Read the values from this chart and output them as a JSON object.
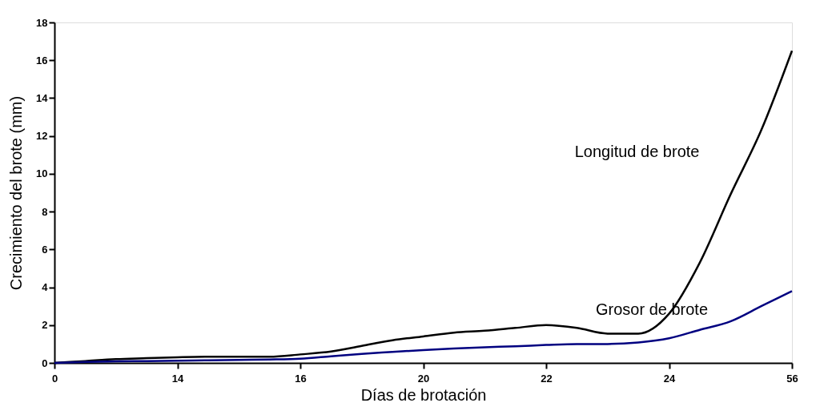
{
  "chart_data": {
    "type": "line",
    "xlabel": "Días de brotación",
    "ylabel": "Crecimiento del brote (mm)",
    "categories": [
      "0",
      null,
      null,
      null,
      "14",
      null,
      null,
      null,
      "16",
      null,
      null,
      null,
      "20",
      null,
      null,
      null,
      "22",
      null,
      null,
      null,
      "24",
      null,
      null,
      null,
      "56"
    ],
    "ylim": [
      0,
      18
    ],
    "yticks": [
      0,
      2,
      4,
      6,
      8,
      10,
      12,
      14,
      16,
      18
    ],
    "marker": "none",
    "line_style": "solid",
    "series": [
      {
        "name": "Longitud de brote",
        "color": "#000000",
        "values": [
          0,
          0.1,
          0.2,
          0.25,
          0.3,
          0.33,
          0.33,
          0.33,
          0.45,
          0.6,
          0.9,
          1.2,
          1.4,
          1.6,
          1.7,
          1.85,
          2.0,
          1.85,
          1.55,
          1.55,
          2.6,
          5.3,
          8.9,
          12.3,
          16.5
        ]
      },
      {
        "name": "Grosor de brote",
        "color": "#000080",
        "values": [
          0,
          0.05,
          0.08,
          0.1,
          0.12,
          0.14,
          0.16,
          0.18,
          0.22,
          0.35,
          0.48,
          0.58,
          0.68,
          0.76,
          0.83,
          0.88,
          0.95,
          1.0,
          1.0,
          1.08,
          1.3,
          1.75,
          2.2,
          3.0,
          3.8
        ]
      }
    ]
  }
}
